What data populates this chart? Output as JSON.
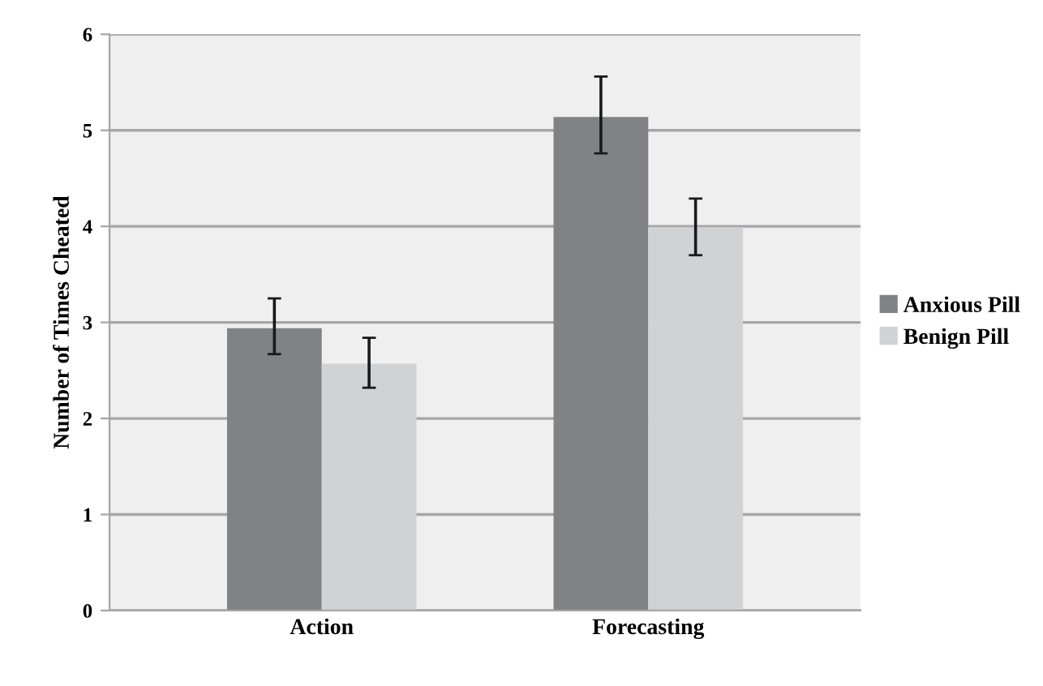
{
  "chart_data": {
    "type": "bar",
    "ylabel": "Number of Times Cheated",
    "categories": [
      "Action",
      "Forecasting"
    ],
    "series": [
      {
        "name": "Anxious Pill",
        "color": "#818285",
        "values": [
          2.94,
          5.14
        ],
        "errors": [
          [
            2.67,
            3.25
          ],
          [
            4.76,
            5.56
          ]
        ]
      },
      {
        "name": "Benign Pill",
        "color": "#d1d2d4",
        "values": [
          2.57,
          3.99
        ],
        "errors": [
          [
            2.32,
            2.84
          ],
          [
            3.7,
            4.29
          ]
        ]
      }
    ],
    "ylim": [
      0,
      6
    ],
    "yticks": [
      0,
      1,
      2,
      3,
      4,
      5,
      6
    ],
    "grid": "y",
    "legend": "right"
  }
}
